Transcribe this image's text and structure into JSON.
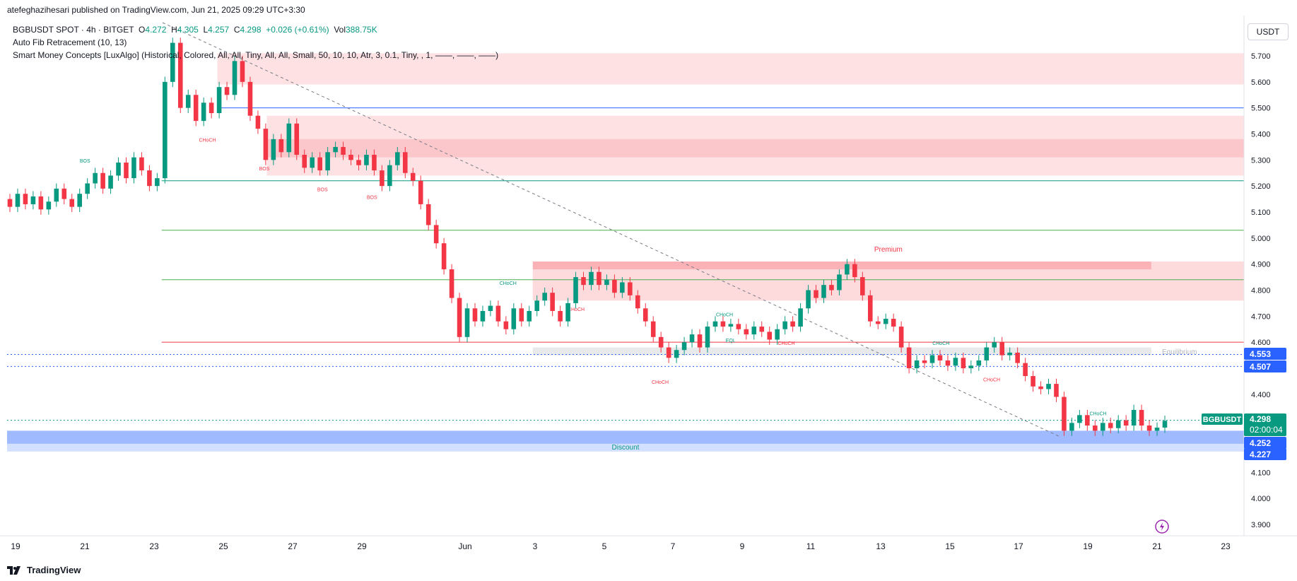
{
  "header": {
    "published": "atefeghazihesari published on TradingView.com, Jun 21, 2025 09:29 UTC+3:30",
    "symbol_line": "BGBUSDT SPOT · 4h · BITGET",
    "open_label": "O",
    "open": "4.272",
    "high_label": "H",
    "high": "4.305",
    "low_label": "L",
    "low": "4.257",
    "close_label": "C",
    "close": "4.298",
    "change": "+0.026 (+0.61%)",
    "vol_label": "Vol",
    "vol": "388.75K"
  },
  "indicators": [
    "Auto Fib Retracement (10, 13)",
    "Smart Money Concepts [LuxAlgo] (Historical, Colored, All, All, Tiny, All, All, Small, 50, 10, 10, Atr, 3, 0.1, Tiny, , 1, ——, ——, ——)"
  ],
  "currency": "USDT",
  "footer": {
    "brand": "TradingView"
  },
  "colors": {
    "up": "#089981",
    "down": "#f23645",
    "bos_red": "#f23645",
    "bos_green": "#089981",
    "supply_zone": "#f7c7cb",
    "demand_zone": "#bcd3f5",
    "fib_blue": "#2962ff"
  },
  "chart_data": {
    "type": "candlestick",
    "symbol": "BGBUSDT",
    "ylim": [
      3.85,
      5.75
    ],
    "yticks": [
      "5.700",
      "5.600",
      "5.500",
      "5.400",
      "5.300",
      "5.200",
      "5.100",
      "5.000",
      "4.900",
      "4.800",
      "4.700",
      "4.600",
      "4.400",
      "4.100",
      "4.000",
      "3.900"
    ],
    "xticks": [
      "19",
      "21",
      "23",
      "25",
      "27",
      "29",
      "Jun",
      "3",
      "5",
      "7",
      "9",
      "11",
      "13",
      "15",
      "17",
      "19",
      "21",
      "23"
    ],
    "price_labels": [
      {
        "text": "4.553",
        "value": 4.553,
        "color": "#2962ff"
      },
      {
        "text": "4.507",
        "value": 4.507,
        "color": "#2962ff"
      },
      {
        "text": "4.298",
        "value": 4.298,
        "color": "#089981",
        "symbol": "BGBUSDT",
        "countdown": "02:00:04"
      },
      {
        "text": "4.252",
        "value": 4.252,
        "color": "#2962ff"
      },
      {
        "text": "4.227",
        "value": 4.227,
        "color": "#2962ff"
      }
    ],
    "zones": [
      {
        "kind": "supply",
        "x0": 0.17,
        "x1": 1.0,
        "y0": 5.59,
        "y1": 5.71
      },
      {
        "kind": "supply",
        "x0": 0.21,
        "x1": 1.0,
        "y0": 5.31,
        "y1": 5.47
      },
      {
        "kind": "supply",
        "x0": 0.21,
        "x1": 1.0,
        "y0": 5.24,
        "y1": 5.38
      },
      {
        "kind": "premium",
        "x0": 0.425,
        "x1": 1.0,
        "y0": 4.76,
        "y1": 4.91,
        "label": "Premium"
      },
      {
        "kind": "premium_dark",
        "x0": 0.425,
        "x1": 0.925,
        "y0": 4.88,
        "y1": 4.91
      },
      {
        "kind": "equilibrium",
        "x0": 0.425,
        "x1": 0.925,
        "y0": 4.55,
        "y1": 4.58,
        "label": "Equilibrium"
      },
      {
        "kind": "discount",
        "x0": 0.0,
        "x1": 1.0,
        "y0": 4.18,
        "y1": 4.26,
        "label": "Discount"
      },
      {
        "kind": "discount_dark",
        "x0": 0.0,
        "x1": 1.0,
        "y0": 4.21,
        "y1": 4.26
      }
    ],
    "hlines": [
      {
        "value": 5.5,
        "color": "#2962ff",
        "x0": 0.17
      },
      {
        "value": 5.22,
        "color": "#089981",
        "x0": 0.125
      },
      {
        "value": 5.03,
        "color": "#4caf50",
        "x0": 0.125
      },
      {
        "value": 4.84,
        "color": "#4caf50",
        "x0": 0.125
      },
      {
        "value": 4.6,
        "color": "#f23645",
        "x0": 0.125
      },
      {
        "value": 4.553,
        "color": "#2962ff",
        "x0": 0.0,
        "dotted": true
      },
      {
        "value": 4.507,
        "color": "#2962ff",
        "x0": 0.0,
        "dotted": true
      },
      {
        "value": 4.3,
        "color": "#089981",
        "x0": 0.0,
        "dotted": true
      }
    ],
    "structure_labels": [
      {
        "text": "BOS",
        "x": 0.063,
        "y": 5.29,
        "color": "#089981"
      },
      {
        "text": "CHoCH",
        "x": 0.162,
        "y": 5.37,
        "color": "#f23645"
      },
      {
        "text": "BOS",
        "x": 0.208,
        "y": 5.26,
        "color": "#f23645"
      },
      {
        "text": "BOS",
        "x": 0.255,
        "y": 5.18,
        "color": "#f23645"
      },
      {
        "text": "BOS",
        "x": 0.295,
        "y": 5.15,
        "color": "#f23645"
      },
      {
        "text": "CHoCH",
        "x": 0.405,
        "y": 4.82,
        "color": "#089981"
      },
      {
        "text": "CHoCH",
        "x": 0.46,
        "y": 4.72,
        "color": "#f23645"
      },
      {
        "text": "CHoCH",
        "x": 0.528,
        "y": 4.44,
        "color": "#f23645"
      },
      {
        "text": "CHoCH",
        "x": 0.58,
        "y": 4.7,
        "color": "#089981"
      },
      {
        "text": "EQL",
        "x": 0.585,
        "y": 4.6,
        "color": "#089981"
      },
      {
        "text": "CHoCH",
        "x": 0.63,
        "y": 4.59,
        "color": "#f23645"
      },
      {
        "text": "CHoCH",
        "x": 0.755,
        "y": 4.59,
        "color": "#089981"
      },
      {
        "text": "CHoCH",
        "x": 0.796,
        "y": 4.45,
        "color": "#f23645"
      },
      {
        "text": "CHoCH",
        "x": 0.882,
        "y": 4.32,
        "color": "#089981"
      }
    ],
    "candles": [
      [
        5.15,
        5.12
      ],
      [
        5.12,
        5.17
      ],
      [
        5.17,
        5.13
      ],
      [
        5.13,
        5.16
      ],
      [
        5.16,
        5.11
      ],
      [
        5.11,
        5.14
      ],
      [
        5.14,
        5.19
      ],
      [
        5.19,
        5.15
      ],
      [
        5.15,
        5.12
      ],
      [
        5.12,
        5.17
      ],
      [
        5.17,
        5.21
      ],
      [
        5.21,
        5.25
      ],
      [
        5.25,
        5.19
      ],
      [
        5.19,
        5.24
      ],
      [
        5.24,
        5.29
      ],
      [
        5.29,
        5.23
      ],
      [
        5.23,
        5.31
      ],
      [
        5.31,
        5.26
      ],
      [
        5.26,
        5.2
      ],
      [
        5.2,
        5.23
      ],
      [
        5.23,
        5.6
      ],
      [
        5.6,
        5.75
      ],
      [
        5.75,
        5.5
      ],
      [
        5.5,
        5.55
      ],
      [
        5.55,
        5.45
      ],
      [
        5.45,
        5.52
      ],
      [
        5.52,
        5.48
      ],
      [
        5.48,
        5.58
      ],
      [
        5.58,
        5.55
      ],
      [
        5.55,
        5.68
      ],
      [
        5.68,
        5.6
      ],
      [
        5.6,
        5.47
      ],
      [
        5.47,
        5.42
      ],
      [
        5.42,
        5.3
      ],
      [
        5.3,
        5.38
      ],
      [
        5.38,
        5.33
      ],
      [
        5.33,
        5.44
      ],
      [
        5.44,
        5.32
      ],
      [
        5.32,
        5.27
      ],
      [
        5.27,
        5.31
      ],
      [
        5.31,
        5.26
      ],
      [
        5.26,
        5.33
      ],
      [
        5.33,
        5.35
      ],
      [
        5.35,
        5.32
      ],
      [
        5.32,
        5.3
      ],
      [
        5.3,
        5.28
      ],
      [
        5.28,
        5.32
      ],
      [
        5.32,
        5.26
      ],
      [
        5.26,
        5.2
      ],
      [
        5.2,
        5.28
      ],
      [
        5.28,
        5.33
      ],
      [
        5.33,
        5.25
      ],
      [
        5.25,
        5.22
      ],
      [
        5.22,
        5.13
      ],
      [
        5.13,
        5.05
      ],
      [
        5.05,
        4.98
      ],
      [
        4.98,
        4.88
      ],
      [
        4.88,
        4.77
      ],
      [
        4.77,
        4.62
      ],
      [
        4.62,
        4.73
      ],
      [
        4.73,
        4.68
      ],
      [
        4.68,
        4.72
      ],
      [
        4.72,
        4.74
      ],
      [
        4.74,
        4.68
      ],
      [
        4.68,
        4.65
      ],
      [
        4.65,
        4.73
      ],
      [
        4.73,
        4.68
      ],
      [
        4.68,
        4.72
      ],
      [
        4.72,
        4.76
      ],
      [
        4.76,
        4.79
      ],
      [
        4.79,
        4.72
      ],
      [
        4.72,
        4.68
      ],
      [
        4.68,
        4.75
      ],
      [
        4.75,
        4.85
      ],
      [
        4.85,
        4.82
      ],
      [
        4.82,
        4.87
      ],
      [
        4.87,
        4.82
      ],
      [
        4.82,
        4.84
      ],
      [
        4.84,
        4.79
      ],
      [
        4.79,
        4.83
      ],
      [
        4.83,
        4.78
      ],
      [
        4.78,
        4.73
      ],
      [
        4.73,
        4.68
      ],
      [
        4.68,
        4.62
      ],
      [
        4.62,
        4.58
      ],
      [
        4.58,
        4.54
      ],
      [
        4.54,
        4.57
      ],
      [
        4.57,
        4.6
      ],
      [
        4.6,
        4.63
      ],
      [
        4.63,
        4.58
      ],
      [
        4.58,
        4.66
      ],
      [
        4.66,
        4.68
      ],
      [
        4.68,
        4.66
      ],
      [
        4.66,
        4.67
      ],
      [
        4.67,
        4.65
      ],
      [
        4.65,
        4.63
      ],
      [
        4.63,
        4.66
      ],
      [
        4.66,
        4.64
      ],
      [
        4.64,
        4.61
      ],
      [
        4.61,
        4.65
      ],
      [
        4.65,
        4.68
      ],
      [
        4.68,
        4.66
      ],
      [
        4.66,
        4.73
      ],
      [
        4.73,
        4.8
      ],
      [
        4.8,
        4.77
      ],
      [
        4.77,
        4.82
      ],
      [
        4.82,
        4.8
      ],
      [
        4.8,
        4.86
      ],
      [
        4.86,
        4.9
      ],
      [
        4.9,
        4.85
      ],
      [
        4.85,
        4.78
      ],
      [
        4.78,
        4.68
      ],
      [
        4.68,
        4.67
      ],
      [
        4.67,
        4.69
      ],
      [
        4.69,
        4.66
      ],
      [
        4.66,
        4.58
      ],
      [
        4.58,
        4.5
      ],
      [
        4.5,
        4.53
      ],
      [
        4.53,
        4.52
      ],
      [
        4.52,
        4.55
      ],
      [
        4.55,
        4.53
      ],
      [
        4.53,
        4.51
      ],
      [
        4.51,
        4.54
      ],
      [
        4.54,
        4.5
      ],
      [
        4.5,
        4.51
      ],
      [
        4.51,
        4.53
      ],
      [
        4.53,
        4.58
      ],
      [
        4.58,
        4.6
      ],
      [
        4.6,
        4.55
      ],
      [
        4.55,
        4.56
      ],
      [
        4.56,
        4.52
      ],
      [
        4.52,
        4.47
      ],
      [
        4.47,
        4.43
      ],
      [
        4.43,
        4.42
      ],
      [
        4.42,
        4.44
      ],
      [
        4.44,
        4.39
      ],
      [
        4.39,
        4.26
      ],
      [
        4.26,
        4.29
      ],
      [
        4.29,
        4.32
      ],
      [
        4.32,
        4.28
      ],
      [
        4.28,
        4.26
      ],
      [
        4.26,
        4.29
      ],
      [
        4.29,
        4.27
      ],
      [
        4.27,
        4.3
      ],
      [
        4.3,
        4.28
      ],
      [
        4.28,
        4.34
      ],
      [
        4.34,
        4.28
      ],
      [
        4.28,
        4.26
      ],
      [
        4.26,
        4.272
      ],
      [
        4.272,
        4.298
      ]
    ]
  }
}
